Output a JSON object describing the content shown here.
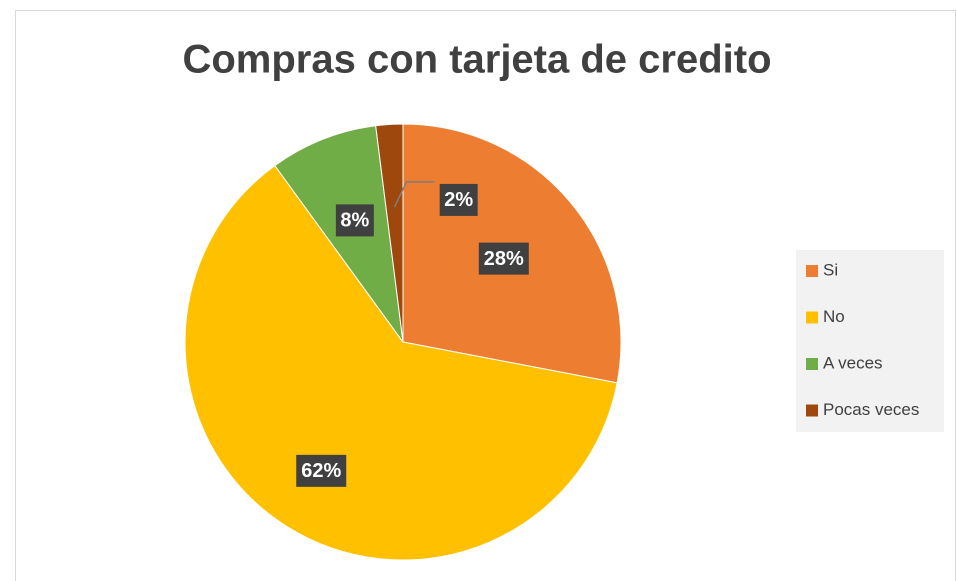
{
  "chart_data": {
    "type": "pie",
    "title": "Compras con tarjeta de credito",
    "categories": [
      "Si",
      "No",
      "A veces",
      "Pocas veces"
    ],
    "values": [
      28,
      62,
      8,
      2
    ],
    "value_labels": [
      "28%",
      "62%",
      "8%",
      "2%"
    ],
    "colors": [
      "#ed7d31",
      "#ffc000",
      "#70ad47",
      "#9e480e"
    ],
    "legend": "right"
  }
}
